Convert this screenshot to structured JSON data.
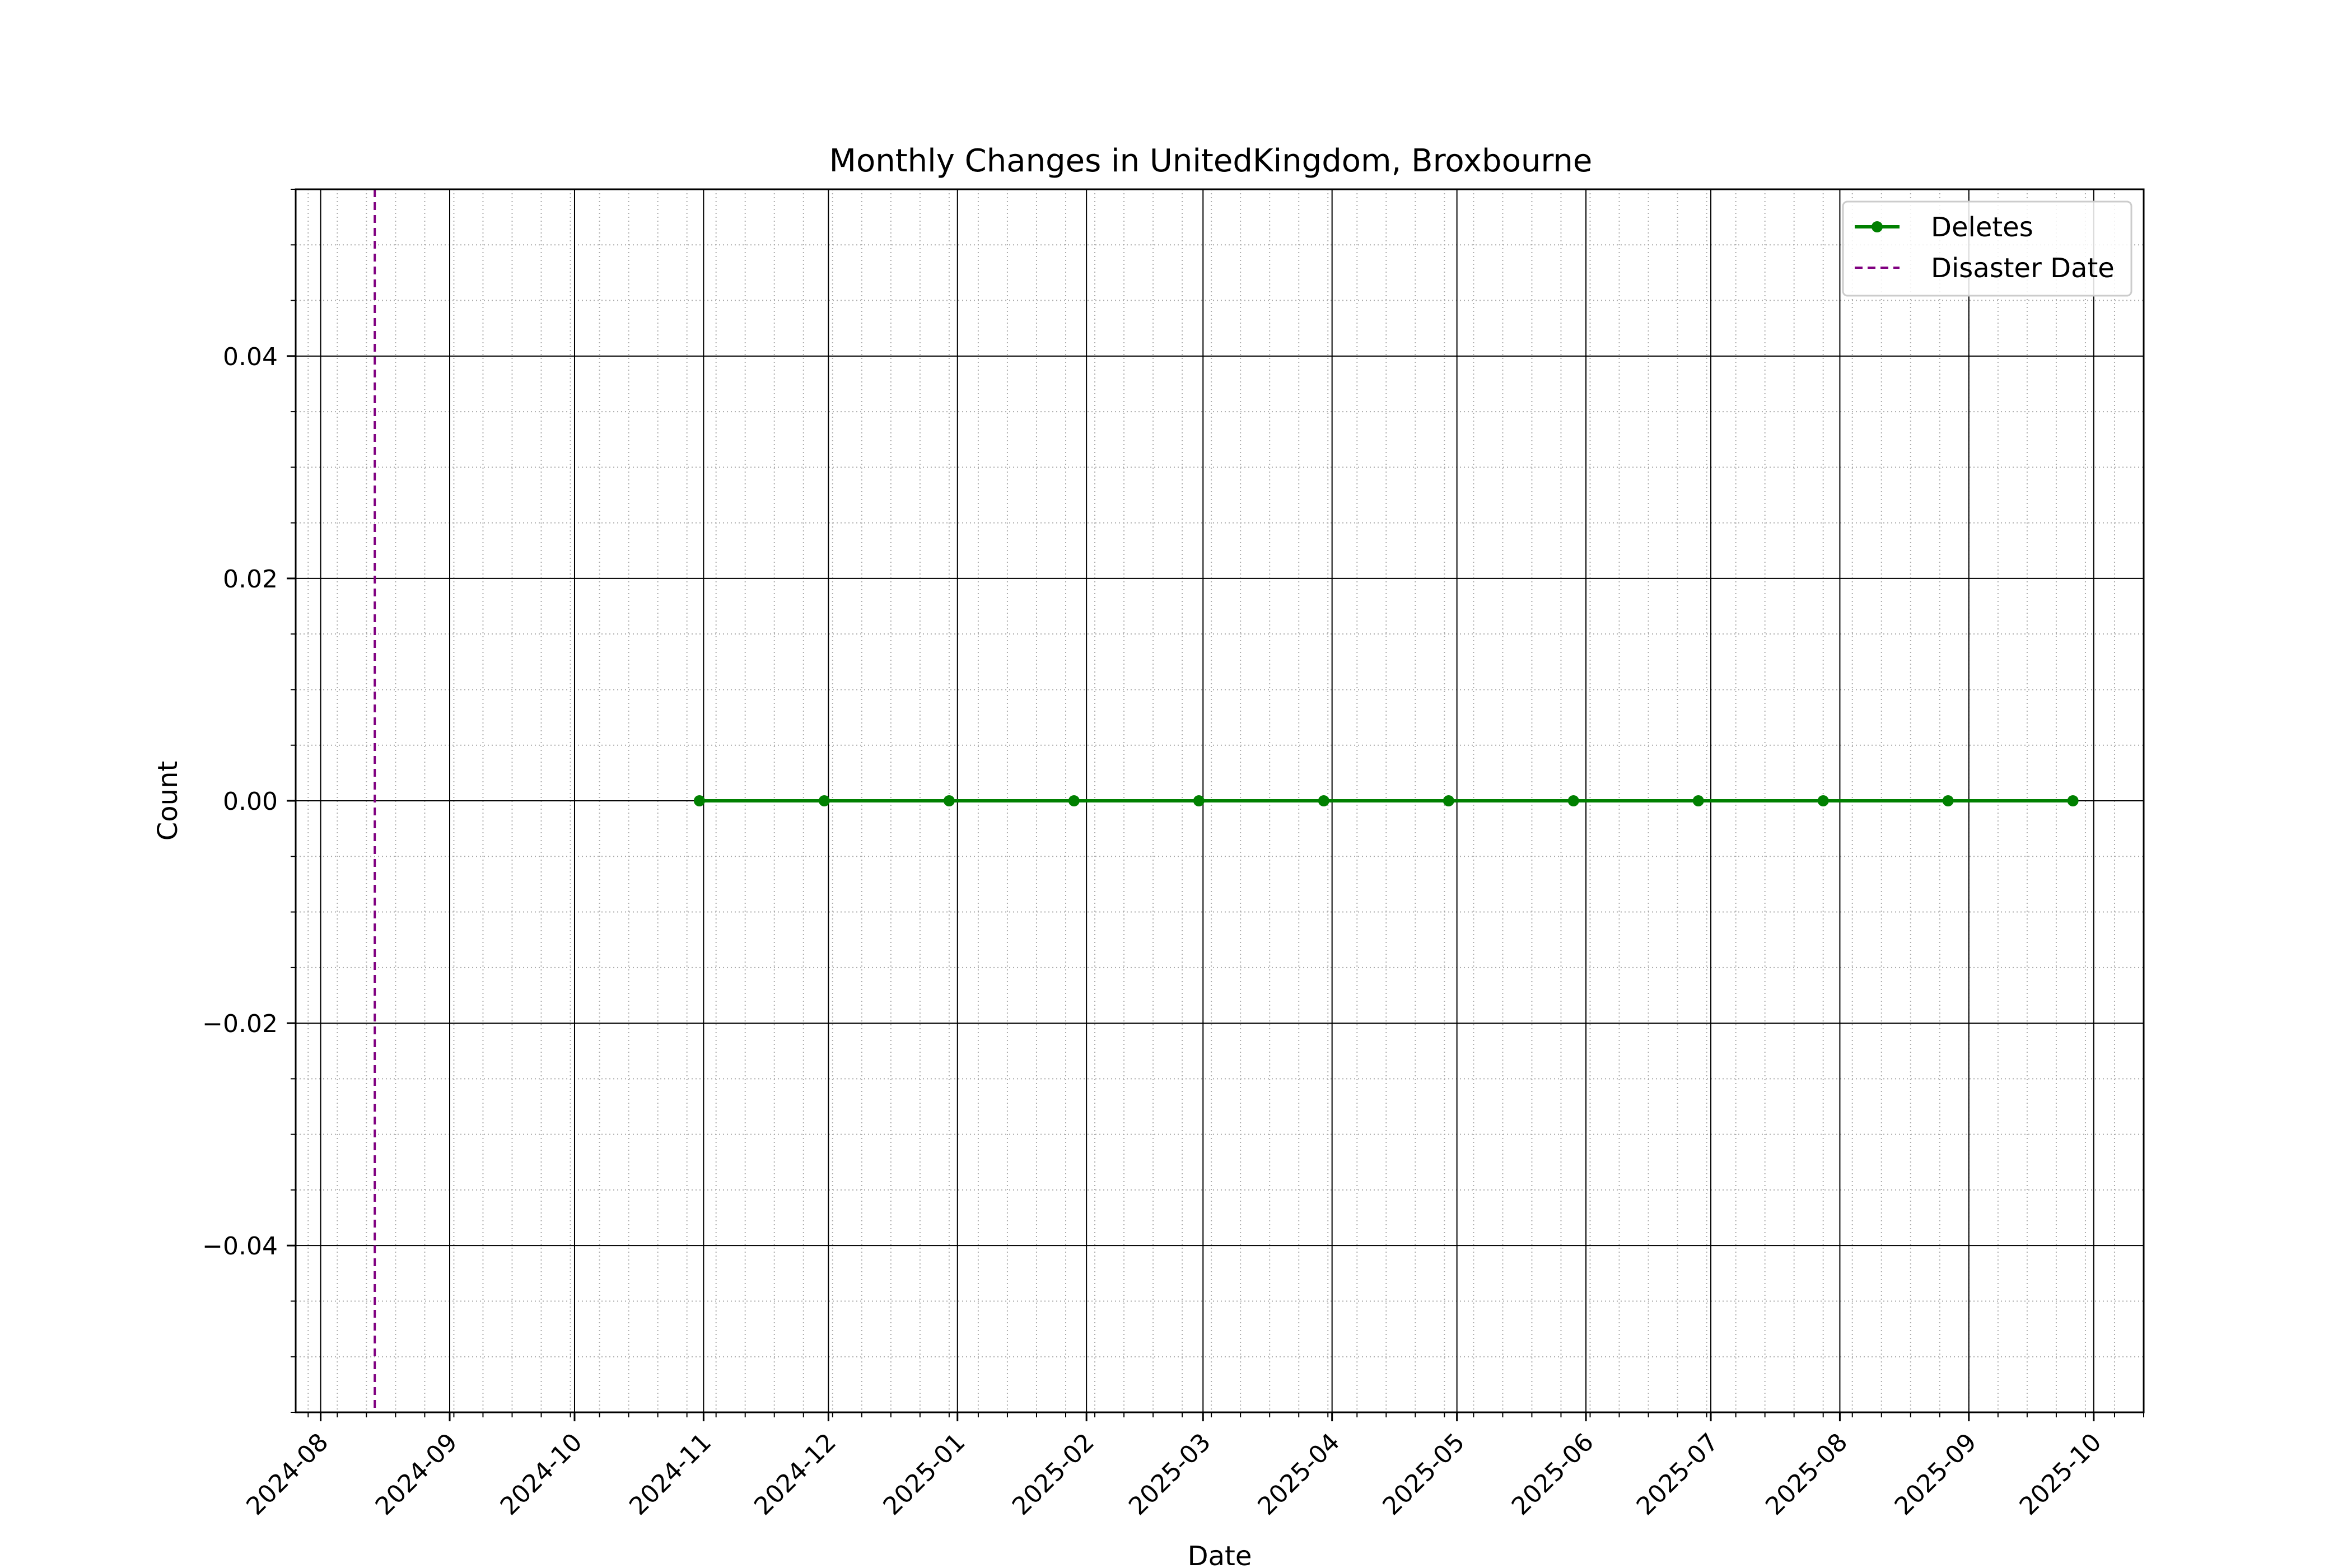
{
  "chart_data": {
    "type": "line",
    "title": "Monthly Changes in UnitedKingdom, Broxbourne",
    "xlabel": "Date",
    "ylabel": "Count",
    "xlim": [
      "2024-07-26",
      "2025-10-13"
    ],
    "ylim": [
      -0.055,
      0.055
    ],
    "x_ticks": [
      "2024-08",
      "2024-09",
      "2024-10",
      "2024-11",
      "2024-12",
      "2025-01",
      "2025-02",
      "2025-03",
      "2025-04",
      "2025-05",
      "2025-06",
      "2025-07",
      "2025-08",
      "2025-09",
      "2025-10"
    ],
    "y_ticks": [
      "0.04",
      "0.02",
      "0.00",
      "−0.02",
      "−0.04"
    ],
    "y_tick_values": [
      0.04,
      0.02,
      0.0,
      -0.02,
      -0.04
    ],
    "grid": "major solid, minor dotted",
    "legend_position": "upper right",
    "series": [
      {
        "name": "Deletes",
        "color": "#008000",
        "marker": "circle",
        "x": [
          "2024-10-31",
          "2024-11-30",
          "2024-12-30",
          "2025-01-29",
          "2025-02-28",
          "2025-03-30",
          "2025-04-29",
          "2025-05-29",
          "2025-06-28",
          "2025-07-28",
          "2025-08-27",
          "2025-09-26"
        ],
        "y": [
          0,
          0,
          0,
          0,
          0,
          0,
          0,
          0,
          0,
          0,
          0,
          0
        ]
      }
    ],
    "reference_lines": [
      {
        "name": "Disaster Date",
        "date": "2024-08-14",
        "color": "#800080",
        "style": "dashed"
      }
    ]
  }
}
